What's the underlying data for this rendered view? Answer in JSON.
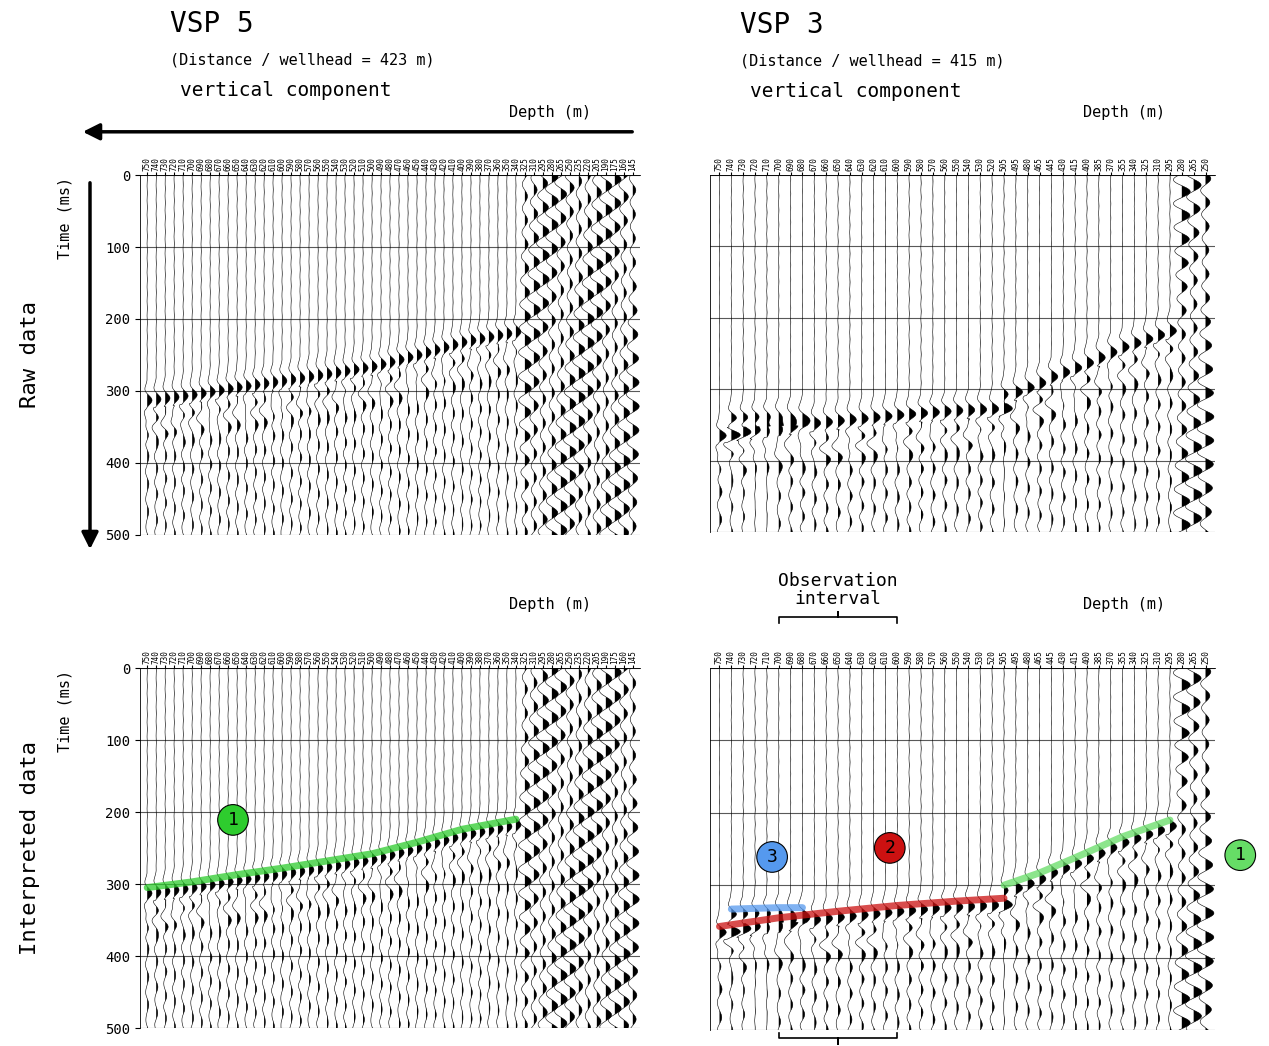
{
  "chart_data": [
    {
      "type": "wiggle",
      "title": "VSP 5",
      "subtitle": [
        "(Distance / wellhead = 423 m)",
        "vertical component"
      ],
      "row_label": "Raw data",
      "xlabel": "Depth (m)",
      "ylabel": "Time (ms)",
      "categories": [
        750,
        740,
        730,
        720,
        710,
        700,
        690,
        680,
        670,
        660,
        650,
        640,
        630,
        620,
        610,
        600,
        590,
        580,
        570,
        560,
        550,
        540,
        530,
        520,
        510,
        500,
        490,
        480,
        470,
        460,
        450,
        440,
        430,
        420,
        410,
        400,
        390,
        380,
        370,
        360,
        350,
        340,
        325,
        310,
        295,
        280,
        265,
        250,
        235,
        220,
        205,
        190,
        175,
        160,
        145
      ],
      "ylim": [
        500,
        0
      ],
      "yticks": [
        0,
        100,
        200,
        300,
        400,
        500
      ],
      "grid": true,
      "arrivals": [
        {
          "x": [
            340,
            400,
            450,
            500,
            550,
            600,
            650,
            700,
            750
          ],
          "values": [
            210,
            224,
            242,
            258,
            268,
            278,
            287,
            297,
            305
          ]
        }
      ]
    },
    {
      "type": "wiggle",
      "title": "VSP 3",
      "subtitle": [
        "(Distance / wellhead = 415 m)",
        "vertical component"
      ],
      "xlabel": "Depth (m)",
      "tick_labels": "x",
      "categories": [
        750,
        740,
        730,
        720,
        710,
        700,
        690,
        680,
        670,
        660,
        650,
        640,
        630,
        620,
        610,
        600,
        590,
        580,
        570,
        560,
        550,
        540,
        530,
        520,
        505,
        495,
        480,
        465,
        445,
        430,
        415,
        400,
        385,
        370,
        355,
        340,
        325,
        310,
        295,
        280,
        265,
        250
      ],
      "ylim": [
        500,
        0
      ],
      "yticks": [
        0,
        100,
        200,
        300,
        400,
        500
      ],
      "grid": true,
      "arrivals": [
        {
          "x": [
            295,
            355,
            415,
            465,
            505
          ],
          "values": [
            210,
            233,
            262,
            283,
            300
          ]
        },
        {
          "x": [
            505,
            550,
            600,
            650,
            700,
            750
          ],
          "values": [
            318,
            322,
            328,
            336,
            345,
            357
          ]
        },
        {
          "x": [
            680,
            700,
            720,
            740
          ],
          "values": [
            331,
            331,
            332,
            333
          ]
        }
      ]
    },
    {
      "type": "wiggle",
      "row_label": "Interpreted data",
      "xlabel": "Depth (m)",
      "ylabel": "Time (ms)",
      "categories": [
        750,
        740,
        730,
        720,
        710,
        700,
        690,
        680,
        670,
        660,
        650,
        640,
        630,
        620,
        610,
        600,
        590,
        580,
        570,
        560,
        550,
        540,
        530,
        520,
        510,
        500,
        490,
        480,
        470,
        460,
        450,
        440,
        430,
        420,
        410,
        400,
        390,
        380,
        370,
        360,
        350,
        340,
        325,
        310,
        295,
        280,
        265,
        250,
        235,
        220,
        205,
        190,
        175,
        160,
        145
      ],
      "ylim": [
        500,
        0
      ],
      "yticks": [
        0,
        100,
        200,
        300,
        400,
        500
      ],
      "grid": true,
      "series": [
        {
          "name": "1",
          "color": "#2ecc2e",
          "x": [
            340,
            400,
            450,
            500,
            550,
            600,
            650,
            700,
            750
          ],
          "values": [
            210,
            224,
            242,
            258,
            268,
            278,
            287,
            297,
            305
          ]
        }
      ]
    },
    {
      "type": "wiggle",
      "xlabel": "Depth (m)",
      "tick_labels": "x",
      "annotations": [
        "Observation\ninterval"
      ],
      "observation_interval": [
        700,
        600
      ],
      "categories": [
        750,
        740,
        730,
        720,
        710,
        700,
        690,
        680,
        670,
        660,
        650,
        640,
        630,
        620,
        610,
        600,
        590,
        580,
        570,
        560,
        550,
        540,
        530,
        520,
        505,
        495,
        480,
        465,
        445,
        430,
        415,
        400,
        385,
        370,
        355,
        340,
        325,
        310,
        295,
        280,
        265,
        250
      ],
      "ylim": [
        500,
        0
      ],
      "yticks": [
        0,
        100,
        200,
        300,
        400,
        500
      ],
      "grid": true,
      "series": [
        {
          "name": "1",
          "color": "#66dd66",
          "x": [
            295,
            355,
            415,
            465,
            505
          ],
          "values": [
            210,
            233,
            262,
            283,
            300
          ]
        },
        {
          "name": "2",
          "color": "#cc1111",
          "x": [
            505,
            550,
            600,
            650,
            700,
            750
          ],
          "values": [
            318,
            322,
            328,
            336,
            345,
            357
          ]
        },
        {
          "name": "3",
          "color": "#5599ee",
          "x": [
            680,
            700,
            720,
            740
          ],
          "values": [
            331,
            331,
            332,
            333
          ]
        }
      ]
    }
  ]
}
